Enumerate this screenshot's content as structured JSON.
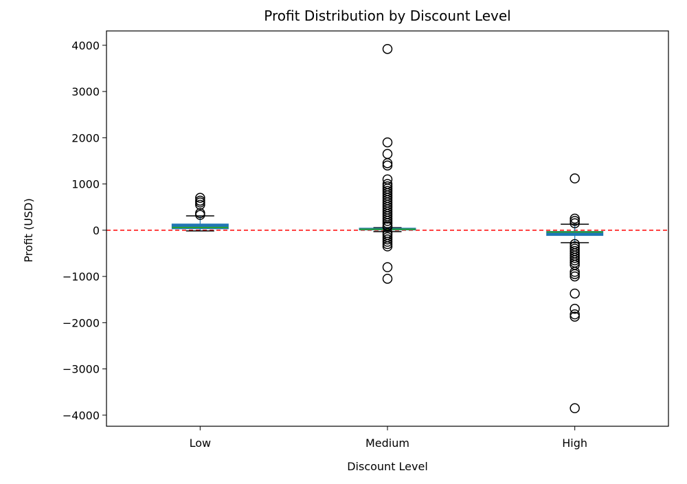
{
  "chart_data": {
    "type": "box",
    "title": "Profit Distribution by Discount Level",
    "xlabel": "Discount Level",
    "ylabel": "Profit (USD)",
    "ylim": [
      -4240,
      4310
    ],
    "yticks": [
      4000,
      3000,
      2000,
      1000,
      0,
      -1000,
      -2000,
      -3000,
      -4000
    ],
    "ytick_labels": [
      "4000",
      "3000",
      "2000",
      "1000",
      "0",
      "−1000",
      "−2000",
      "−3000",
      "−4000"
    ],
    "categories": [
      "Low",
      "Medium",
      "High"
    ],
    "reference_line": {
      "y": 0,
      "color": "#ff0000",
      "style": "dashed"
    },
    "box_color": "#1f77b4",
    "median_color": "#2ca02c",
    "boxes": [
      {
        "category": "Low",
        "whisker_low": -15,
        "q1": 30,
        "median": 60,
        "q3": 135,
        "whisker_high": 310,
        "outliers": [
          700,
          640,
          600,
          550,
          370,
          330
        ]
      },
      {
        "category": "Medium",
        "whisker_low": -30,
        "q1": 5,
        "median": 20,
        "q3": 45,
        "whisker_high": 55,
        "outliers": [
          3920,
          1900,
          1650,
          1450,
          1400,
          1100,
          1000,
          950,
          900,
          850,
          800,
          750,
          700,
          650,
          600,
          550,
          500,
          450,
          400,
          350,
          300,
          250,
          200,
          150,
          100,
          70,
          -60,
          -100,
          -150,
          -200,
          -250,
          -300,
          -350,
          -800,
          -1050
        ]
      },
      {
        "category": "High",
        "whisker_low": -270,
        "q1": -115,
        "median": -40,
        "q3": -25,
        "whisker_high": 130,
        "outliers": [
          1120,
          250,
          200,
          150,
          -300,
          -350,
          -400,
          -450,
          -500,
          -550,
          -600,
          -650,
          -700,
          -750,
          -900,
          -950,
          -1000,
          -1370,
          -1700,
          -1820,
          -1870,
          -3850
        ]
      }
    ]
  }
}
